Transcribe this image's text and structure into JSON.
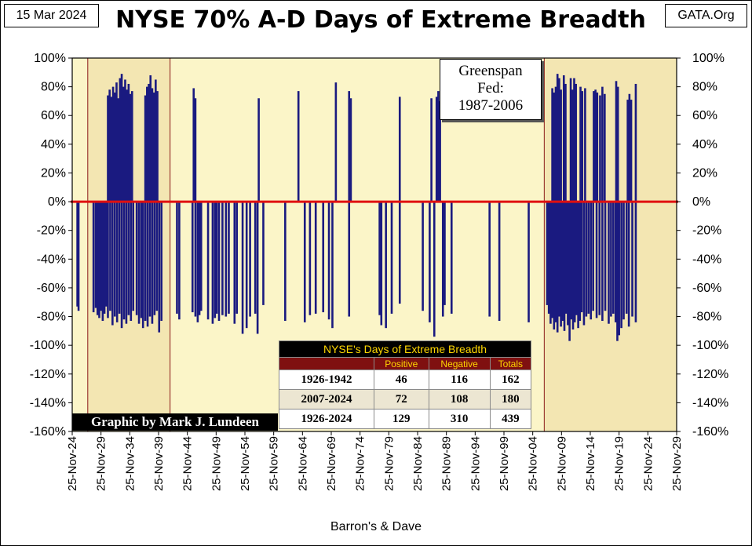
{
  "header": {
    "date": "15 Mar 2024",
    "site": "GATA.Org",
    "title": "NYSE 70% A-D Days of Extreme Breadth"
  },
  "annotation": {
    "line1": "Greenspan",
    "line2": "Fed:",
    "line3": "1987-2006"
  },
  "credit": "Graphic by Mark J. Lundeen",
  "source": "Barron's & Dave",
  "colors": {
    "plot_bg": "#fbf5c8",
    "shade_bg": "#f3e6b2",
    "bar": "#1a1a80",
    "zero_line": "#e01010",
    "shade_border": "#8b1a1a"
  },
  "table": {
    "title": "NYSE's Days of Extreme Breadth",
    "headers": [
      "",
      "Positive",
      "Negative",
      "Totals"
    ],
    "rows": [
      [
        "1926-1942",
        "46",
        "116",
        "162"
      ],
      [
        "2007-2024",
        "72",
        "108",
        "180"
      ],
      [
        "1926-2024",
        "129",
        "310",
        "439"
      ]
    ]
  },
  "chart_data": {
    "type": "bar",
    "title": "NYSE 70% A-D Days of Extreme Breadth",
    "xlabel": "Barron's & Dave",
    "ylabel": "",
    "ylim": [
      -160,
      100
    ],
    "yticks": [
      "100%",
      "80%",
      "60%",
      "40%",
      "20%",
      "0%",
      "-20%",
      "-40%",
      "-60%",
      "-80%",
      "-100%",
      "-120%",
      "-140%",
      "-160%"
    ],
    "xlim": [
      1924.9,
      2029.9
    ],
    "xticks": [
      "25-Nov-24",
      "25-Nov-29",
      "25-Nov-34",
      "25-Nov-39",
      "25-Nov-44",
      "25-Nov-49",
      "25-Nov-54",
      "25-Nov-59",
      "25-Nov-64",
      "25-Nov-69",
      "25-Nov-74",
      "25-Nov-79",
      "25-Nov-84",
      "25-Nov-89",
      "25-Nov-94",
      "25-Nov-99",
      "25-Nov-04",
      "25-Nov-09",
      "25-Nov-14",
      "25-Nov-19",
      "25-Nov-24",
      "25-Nov-29"
    ],
    "shaded_periods": [
      [
        1927.6,
        1941.9
      ],
      [
        2006.9,
        2029.9
      ]
    ],
    "series": [
      {
        "name": "Positive 70% A-D days",
        "points": [
          [
            1931.1,
            74
          ],
          [
            1931.4,
            78
          ],
          [
            1931.7,
            73
          ],
          [
            1932.0,
            80
          ],
          [
            1932.3,
            76
          ],
          [
            1932.6,
            83
          ],
          [
            1932.9,
            72
          ],
          [
            1933.2,
            86
          ],
          [
            1933.5,
            89
          ],
          [
            1933.8,
            80
          ],
          [
            1934.1,
            85
          ],
          [
            1934.4,
            78
          ],
          [
            1934.7,
            82
          ],
          [
            1935.0,
            75
          ],
          [
            1935.3,
            77
          ],
          [
            1937.6,
            74
          ],
          [
            1937.9,
            80
          ],
          [
            1938.2,
            82
          ],
          [
            1938.5,
            88
          ],
          [
            1938.8,
            79
          ],
          [
            1939.1,
            76
          ],
          [
            1939.4,
            85
          ],
          [
            1939.7,
            77
          ],
          [
            1946.0,
            79
          ],
          [
            1946.3,
            72
          ],
          [
            1957.3,
            72
          ],
          [
            1964.2,
            77
          ],
          [
            1970.7,
            83
          ],
          [
            1973.0,
            77
          ],
          [
            1973.3,
            72
          ],
          [
            1981.8,
            73
          ],
          [
            1987.3,
            72
          ],
          [
            1988.2,
            73
          ],
          [
            1988.5,
            77
          ],
          [
            1988.8,
            70
          ],
          [
            2008.3,
            79
          ],
          [
            2008.6,
            76
          ],
          [
            2008.9,
            80
          ],
          [
            2009.2,
            89
          ],
          [
            2009.5,
            86
          ],
          [
            2009.8,
            78
          ],
          [
            2010.3,
            88
          ],
          [
            2010.6,
            82
          ],
          [
            2011.5,
            86
          ],
          [
            2011.8,
            78
          ],
          [
            2012.1,
            86
          ],
          [
            2012.4,
            82
          ],
          [
            2013.2,
            80
          ],
          [
            2013.5,
            77
          ],
          [
            2014.0,
            79
          ],
          [
            2015.5,
            77
          ],
          [
            2015.8,
            78
          ],
          [
            2016.1,
            76
          ],
          [
            2016.6,
            74
          ],
          [
            2017.0,
            80
          ],
          [
            2017.4,
            75
          ],
          [
            2019.4,
            84
          ],
          [
            2019.7,
            80
          ],
          [
            2021.4,
            71
          ],
          [
            2021.7,
            75
          ],
          [
            2022.0,
            71
          ],
          [
            2022.8,
            82
          ]
        ]
      },
      {
        "name": "Negative 70% A-D days",
        "points": [
          [
            1925.8,
            -73
          ],
          [
            1926.0,
            -76
          ],
          [
            1928.6,
            -77
          ],
          [
            1929.0,
            -74
          ],
          [
            1929.3,
            -79
          ],
          [
            1929.6,
            -81
          ],
          [
            1929.9,
            -76
          ],
          [
            1930.2,
            -83
          ],
          [
            1930.5,
            -78
          ],
          [
            1930.8,
            -73
          ],
          [
            1931.1,
            -81
          ],
          [
            1931.5,
            -76
          ],
          [
            1931.9,
            -86
          ],
          [
            1932.3,
            -80
          ],
          [
            1932.7,
            -84
          ],
          [
            1933.1,
            -78
          ],
          [
            1933.5,
            -88
          ],
          [
            1933.9,
            -82
          ],
          [
            1934.3,
            -85
          ],
          [
            1934.7,
            -79
          ],
          [
            1935.1,
            -83
          ],
          [
            1935.5,
            -76
          ],
          [
            1936.1,
            -79
          ],
          [
            1936.5,
            -85
          ],
          [
            1936.9,
            -81
          ],
          [
            1937.2,
            -88
          ],
          [
            1937.6,
            -83
          ],
          [
            1938.0,
            -87
          ],
          [
            1938.4,
            -80
          ],
          [
            1938.8,
            -85
          ],
          [
            1939.2,
            -79
          ],
          [
            1939.6,
            -76
          ],
          [
            1940.0,
            -91
          ],
          [
            1940.4,
            -83
          ],
          [
            1943.1,
            -78
          ],
          [
            1943.5,
            -82
          ],
          [
            1945.8,
            -77
          ],
          [
            1946.3,
            -80
          ],
          [
            1946.7,
            -84
          ],
          [
            1947.0,
            -79
          ],
          [
            1947.3,
            -76
          ],
          [
            1948.5,
            -82
          ],
          [
            1949.3,
            -85
          ],
          [
            1949.7,
            -81
          ],
          [
            1950.0,
            -78
          ],
          [
            1950.4,
            -83
          ],
          [
            1951.0,
            -79
          ],
          [
            1951.6,
            -80
          ],
          [
            1952.1,
            -78
          ],
          [
            1953.1,
            -85
          ],
          [
            1953.5,
            -78
          ],
          [
            1954.5,
            -92
          ],
          [
            1955.2,
            -88
          ],
          [
            1955.8,
            -80
          ],
          [
            1956.7,
            -78
          ],
          [
            1957.1,
            -92
          ],
          [
            1958.1,
            -72
          ],
          [
            1961.9,
            -83
          ],
          [
            1965.3,
            -84
          ],
          [
            1966.2,
            -79
          ],
          [
            1967.2,
            -78
          ],
          [
            1968.5,
            -77
          ],
          [
            1969.5,
            -82
          ],
          [
            1970.1,
            -88
          ],
          [
            1973.0,
            -80
          ],
          [
            1978.3,
            -79
          ],
          [
            1978.6,
            -86
          ],
          [
            1979.4,
            -88
          ],
          [
            1980.4,
            -78
          ],
          [
            1981.8,
            -71
          ],
          [
            1985.8,
            -76
          ],
          [
            1987.0,
            -84
          ],
          [
            1987.8,
            -94
          ],
          [
            1989.3,
            -80
          ],
          [
            1989.6,
            -72
          ],
          [
            1990.8,
            -78
          ],
          [
            1997.4,
            -80
          ],
          [
            1999.1,
            -83
          ],
          [
            2004.2,
            -84
          ],
          [
            2007.4,
            -72
          ],
          [
            2007.7,
            -78
          ],
          [
            2008.0,
            -85
          ],
          [
            2008.3,
            -81
          ],
          [
            2008.6,
            -89
          ],
          [
            2008.9,
            -84
          ],
          [
            2009.2,
            -91
          ],
          [
            2009.5,
            -80
          ],
          [
            2009.8,
            -87
          ],
          [
            2010.1,
            -83
          ],
          [
            2010.4,
            -90
          ],
          [
            2010.7,
            -78
          ],
          [
            2011.0,
            -86
          ],
          [
            2011.3,
            -97
          ],
          [
            2011.6,
            -82
          ],
          [
            2011.9,
            -89
          ],
          [
            2012.2,
            -84
          ],
          [
            2012.5,
            -79
          ],
          [
            2012.8,
            -88
          ],
          [
            2013.1,
            -83
          ],
          [
            2013.4,
            -77
          ],
          [
            2013.8,
            -86
          ],
          [
            2014.2,
            -80
          ],
          [
            2014.6,
            -78
          ],
          [
            2015.0,
            -82
          ],
          [
            2015.4,
            -76
          ],
          [
            2016.0,
            -81
          ],
          [
            2016.5,
            -79
          ],
          [
            2017.0,
            -83
          ],
          [
            2017.5,
            -76
          ],
          [
            2018.1,
            -85
          ],
          [
            2018.5,
            -80
          ],
          [
            2018.9,
            -78
          ],
          [
            2019.3,
            -84
          ],
          [
            2019.6,
            -97
          ],
          [
            2019.9,
            -93
          ],
          [
            2020.3,
            -88
          ],
          [
            2020.7,
            -82
          ],
          [
            2021.2,
            -78
          ],
          [
            2021.6,
            -87
          ],
          [
            2022.2,
            -80
          ],
          [
            2022.8,
            -84
          ]
        ]
      }
    ]
  }
}
